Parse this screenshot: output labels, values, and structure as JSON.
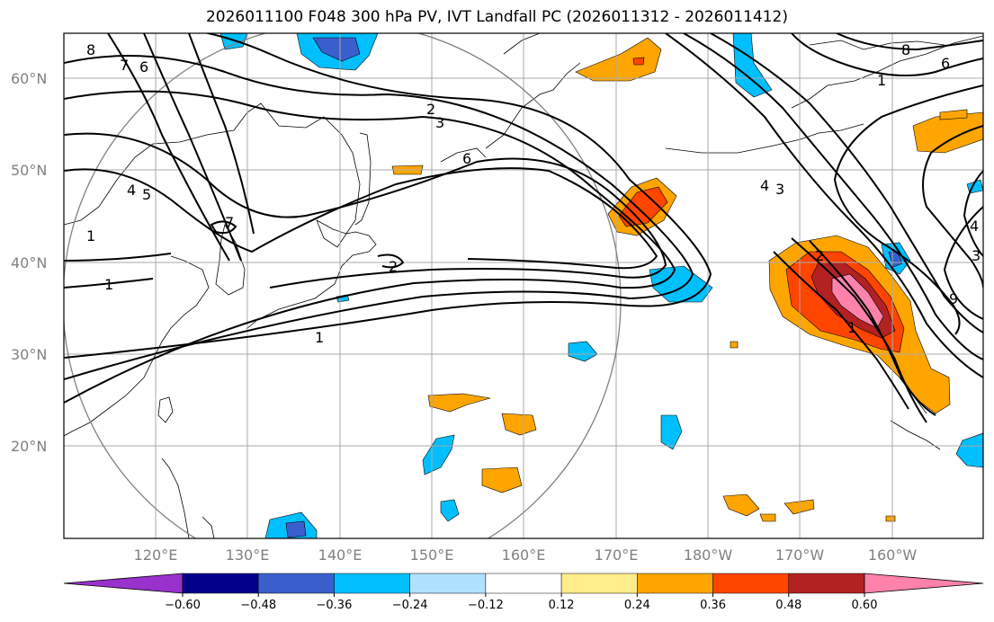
{
  "title": "2026011100 F048 300 hPa PV, IVT Landfall PC (2026011312 - 2026011412)",
  "lat_labels": [
    "60°N",
    "50°N",
    "40°N",
    "30°N",
    "20°N"
  ],
  "lon_labels": [
    "120°E",
    "130°E",
    "140°E",
    "150°E",
    "160°E",
    "170°E",
    "180°W",
    "170°W",
    "160°W"
  ],
  "pv_contour_labels": [
    "8",
    "7",
    "6",
    "2",
    "3",
    "6",
    "7",
    "1",
    "1",
    "2",
    "1",
    "4",
    "5",
    "8",
    "6",
    "1",
    "4",
    "3",
    "4",
    "3",
    "9",
    "1",
    "2"
  ],
  "colorbar": {
    "tick_labels": [
      "−0.60",
      "−0.48",
      "−0.36",
      "−0.24",
      "−0.12",
      "0.12",
      "0.24",
      "0.36",
      "0.48",
      "0.60"
    ],
    "colors": [
      "#9932cc",
      "#00008b",
      "#3a5fcd",
      "#00bfff",
      "#b0e2ff",
      "#ffffff",
      "#ffec8b",
      "#ffa500",
      "#ff4500",
      "#b22222",
      "#ff82ab"
    ]
  }
}
